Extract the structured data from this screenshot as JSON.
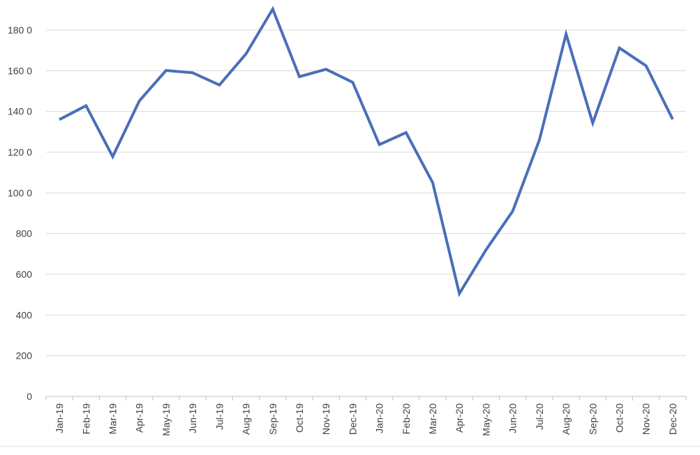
{
  "chart_data": {
    "type": "line",
    "title": "",
    "xlabel": "",
    "ylabel": "",
    "categories": [
      "Jan-19",
      "Feb-19",
      "Mar-19",
      "Apr-19",
      "May-19",
      "Jun-19",
      "Jul-19",
      "Aug-19",
      "Sep-19",
      "Oct-19",
      "Nov-19",
      "Dec-19",
      "Jan-20",
      "Feb-20",
      "Mar-20",
      "Apr-20",
      "May-20",
      "Jun-20",
      "Jul-20",
      "Aug-20",
      "Sep-20",
      "Oct-20",
      "Nov-20",
      "Dec-20"
    ],
    "series": [
      {
        "values": [
          1360,
          1428,
          1178,
          1452,
          1601,
          1590,
          1530,
          1683,
          1903,
          1571,
          1607,
          1543,
          1237,
          1296,
          1050,
          505,
          720,
          910,
          1260,
          1780,
          1343,
          1712,
          1624,
          1361
        ]
      }
    ],
    "ylim": [
      0,
      1800
    ],
    "yticks": [
      0,
      200,
      400,
      600,
      800,
      1000,
      1200,
      1400,
      1600,
      1800
    ],
    "ytick_labels": [
      "0",
      "200",
      "400",
      "600",
      "800",
      "100 0",
      "120 0",
      "140 0",
      "160 0",
      "180 0"
    ],
    "grid": "horizontal",
    "legend": "none",
    "line_color": "#4a6fb9",
    "grid_color": "#d9d9d9",
    "axis_color": "#bfbfbf"
  }
}
